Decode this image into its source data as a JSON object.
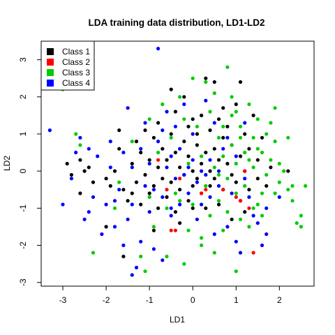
{
  "chart_data": {
    "type": "scatter",
    "title": "LDA training data distribution, LD1-LD2",
    "xlabel": "LD1",
    "ylabel": "LD2",
    "xlim": [
      -3.5,
      2.8
    ],
    "ylim": [
      -3.1,
      3.5
    ],
    "xticks": [
      -3,
      -2,
      -1,
      0,
      1,
      2
    ],
    "yticks": [
      -3,
      -2,
      -1,
      0,
      1,
      2,
      3
    ],
    "legend_position": "top-left",
    "series": [
      {
        "name": "Class 1",
        "color": "#000000",
        "points": [
          [
            -2.9,
            0.2
          ],
          [
            -2.8,
            -0.1
          ],
          [
            -2.6,
            0.3
          ],
          [
            -2.5,
            0.0
          ],
          [
            -2.4,
            0.1
          ],
          [
            -2.6,
            -0.6
          ],
          [
            -2.3,
            -0.3
          ],
          [
            -2.0,
            -0.2
          ],
          [
            -1.9,
            -0.4
          ],
          [
            -1.8,
            0.0
          ],
          [
            -1.6,
            -0.5
          ],
          [
            -1.7,
            0.6
          ],
          [
            -1.5,
            -0.8
          ],
          [
            -1.4,
            -0.6
          ],
          [
            -1.4,
            0.2
          ],
          [
            -1.3,
            0.8
          ],
          [
            -1.3,
            -0.3
          ],
          [
            -1.2,
            0.5
          ],
          [
            -1.2,
            -0.9
          ],
          [
            -1.1,
            1.1
          ],
          [
            -1.1,
            -0.1
          ],
          [
            -1.0,
            0.3
          ],
          [
            -1.0,
            -0.6
          ],
          [
            -0.9,
            0.9
          ],
          [
            -0.9,
            -0.4
          ],
          [
            -0.8,
            0.1
          ],
          [
            -0.8,
            1.3
          ],
          [
            -0.8,
            -1.0
          ],
          [
            -0.7,
            0.6
          ],
          [
            -0.7,
            -0.2
          ],
          [
            -0.6,
            0.3
          ],
          [
            -0.6,
            -0.7
          ],
          [
            -0.5,
            1.0
          ],
          [
            -0.5,
            -0.3
          ],
          [
            -0.4,
            0.5
          ],
          [
            -0.4,
            1.6
          ],
          [
            -0.4,
            -1.1
          ],
          [
            -0.3,
            0.1
          ],
          [
            -0.3,
            -0.5
          ],
          [
            -0.2,
            0.8
          ],
          [
            -0.2,
            -0.1
          ],
          [
            -0.1,
            1.2
          ],
          [
            -0.1,
            0.4
          ],
          [
            -0.1,
            -0.8
          ],
          [
            0.0,
            0.0
          ],
          [
            0.0,
            1.4
          ],
          [
            0.0,
            -0.4
          ],
          [
            0.1,
            0.7
          ],
          [
            0.1,
            -0.2
          ],
          [
            0.1,
            1.0
          ],
          [
            0.2,
            0.2
          ],
          [
            0.2,
            -0.6
          ],
          [
            0.2,
            1.5
          ],
          [
            0.3,
            0.5
          ],
          [
            0.3,
            -1.0
          ],
          [
            0.3,
            2.5
          ],
          [
            0.4,
            0.0
          ],
          [
            0.4,
            1.1
          ],
          [
            0.4,
            -0.4
          ],
          [
            0.5,
            0.6
          ],
          [
            0.5,
            -0.2
          ],
          [
            0.6,
            1.4
          ],
          [
            0.6,
            0.3
          ],
          [
            0.6,
            -0.9
          ],
          [
            0.7,
            0.9
          ],
          [
            0.7,
            -0.5
          ],
          [
            0.8,
            0.2
          ],
          [
            0.8,
            1.2
          ],
          [
            0.9,
            -0.1
          ],
          [
            0.9,
            0.7
          ],
          [
            1.0,
            1.8
          ],
          [
            1.0,
            -0.3
          ],
          [
            1.1,
            0.4
          ],
          [
            1.1,
            -0.8
          ],
          [
            1.1,
            2.4
          ],
          [
            1.2,
            1.0
          ],
          [
            1.2,
            0.0
          ],
          [
            1.3,
            -0.5
          ],
          [
            1.3,
            0.6
          ],
          [
            1.4,
            1.5
          ],
          [
            1.5,
            -0.2
          ],
          [
            1.5,
            0.3
          ],
          [
            1.6,
            0.9
          ],
          [
            1.7,
            -0.4
          ],
          [
            1.8,
            0.1
          ],
          [
            1.2,
            -1.1
          ],
          [
            0.9,
            -1.3
          ],
          [
            -1.6,
            -2.3
          ],
          [
            -2.0,
            -1.5
          ],
          [
            0.0,
            -1.0
          ],
          [
            -0.5,
            2.2
          ],
          [
            -0.2,
            2.0
          ],
          [
            0.5,
            2.4
          ],
          [
            -1.7,
            1.1
          ],
          [
            2.2,
            0.0
          ],
          [
            -0.9,
            -1.6
          ],
          [
            -0.3,
            -1.4
          ],
          [
            0.7,
            1.7
          ]
        ]
      },
      {
        "name": "Class 2",
        "color": "#ff0000",
        "points": [
          [
            -0.8,
            0.3
          ],
          [
            -0.6,
            -0.5
          ],
          [
            -0.5,
            -1.6
          ],
          [
            -0.4,
            -1.6
          ],
          [
            0.2,
            -0.6
          ],
          [
            0.3,
            -0.5
          ],
          [
            0.7,
            -0.5
          ],
          [
            1.0,
            -0.7
          ],
          [
            1.1,
            -0.8
          ],
          [
            1.2,
            0.0
          ],
          [
            1.3,
            -1.0
          ],
          [
            1.4,
            -2.2
          ],
          [
            -0.3,
            -0.2
          ]
        ]
      },
      {
        "name": "Class 3",
        "color": "#00cc00",
        "points": [
          [
            -3.0,
            2.2
          ],
          [
            -2.7,
            1.0
          ],
          [
            -2.6,
            0.7
          ],
          [
            -2.3,
            -2.2
          ],
          [
            -1.8,
            -1.0
          ],
          [
            -1.7,
            -0.3
          ],
          [
            -1.4,
            0.8
          ],
          [
            -1.2,
            -2.3
          ],
          [
            -1.1,
            -2.7
          ],
          [
            -1.0,
            -0.7
          ],
          [
            -1.0,
            1.4
          ],
          [
            -0.9,
            -1.5
          ],
          [
            -0.8,
            0.5
          ],
          [
            -0.7,
            1.8
          ],
          [
            -0.6,
            -1.0
          ],
          [
            -0.5,
            0.9
          ],
          [
            -0.4,
            -0.6
          ],
          [
            -0.3,
            2.0
          ],
          [
            -0.3,
            -0.8
          ],
          [
            -0.2,
            1.4
          ],
          [
            -0.1,
            0.2
          ],
          [
            -0.1,
            -1.6
          ],
          [
            0.0,
            2.5
          ],
          [
            0.0,
            -0.9
          ],
          [
            0.1,
            1.2
          ],
          [
            0.2,
            -1.8
          ],
          [
            0.2,
            0.4
          ],
          [
            0.3,
            2.4
          ],
          [
            0.3,
            -0.4
          ],
          [
            0.4,
            1.6
          ],
          [
            0.4,
            -1.2
          ],
          [
            0.5,
            0.1
          ],
          [
            0.5,
            2.1
          ],
          [
            0.6,
            -0.8
          ],
          [
            0.6,
            0.9
          ],
          [
            0.7,
            -1.6
          ],
          [
            0.7,
            1.2
          ],
          [
            0.7,
            0.4
          ],
          [
            0.8,
            2.8
          ],
          [
            0.8,
            -0.2
          ],
          [
            0.8,
            -1.1
          ],
          [
            0.9,
            0.7
          ],
          [
            0.9,
            1.5
          ],
          [
            1.0,
            -0.6
          ],
          [
            1.0,
            -2.7
          ],
          [
            1.0,
            0.2
          ],
          [
            1.1,
            1.2
          ],
          [
            1.1,
            -1.3
          ],
          [
            1.2,
            0.5
          ],
          [
            1.2,
            -0.4
          ],
          [
            1.3,
            1.8
          ],
          [
            1.3,
            -1.5
          ],
          [
            1.4,
            0.1
          ],
          [
            1.4,
            0.9
          ],
          [
            1.5,
            -0.9
          ],
          [
            1.5,
            1.4
          ],
          [
            1.6,
            0.5
          ],
          [
            1.6,
            -1.2
          ],
          [
            1.7,
            1.0
          ],
          [
            1.7,
            -0.1
          ],
          [
            1.8,
            0.3
          ],
          [
            1.9,
            -0.6
          ],
          [
            1.9,
            0.8
          ],
          [
            1.9,
            1.7
          ],
          [
            2.0,
            -0.3
          ],
          [
            2.0,
            0.2
          ],
          [
            2.1,
            0.0
          ],
          [
            2.2,
            -0.5
          ],
          [
            2.3,
            -0.4
          ],
          [
            2.4,
            -1.4
          ],
          [
            2.5,
            -1.2
          ],
          [
            2.5,
            -1.5
          ],
          [
            2.6,
            -0.4
          ],
          [
            2.3,
            -0.8
          ],
          [
            1.8,
            1.3
          ],
          [
            1.6,
            -0.6
          ],
          [
            1.4,
            -1.0
          ],
          [
            0.5,
            -2.2
          ],
          [
            0.2,
            -2.0
          ],
          [
            -0.2,
            -2.5
          ],
          [
            1.1,
            0.9
          ],
          [
            0.9,
            2.0
          ],
          [
            -0.6,
            -2.3
          ],
          [
            1.3,
            0.3
          ],
          [
            0.6,
            -0.1
          ],
          [
            1.5,
            0.6
          ],
          [
            2.2,
            0.9
          ],
          [
            1.0,
            1.6
          ]
        ]
      },
      {
        "name": "Class 4",
        "color": "#0000ff",
        "points": [
          [
            -3.3,
            1.1
          ],
          [
            -3.0,
            -0.9
          ],
          [
            -2.8,
            -0.2
          ],
          [
            -2.7,
            0.5
          ],
          [
            -2.6,
            0.9
          ],
          [
            -2.5,
            -1.3
          ],
          [
            -2.4,
            -1.1
          ],
          [
            -2.3,
            -0.7
          ],
          [
            -2.2,
            0.4
          ],
          [
            -2.1,
            -1.7
          ],
          [
            -2.0,
            -0.9
          ],
          [
            -1.9,
            0.1
          ],
          [
            -1.8,
            -1.5
          ],
          [
            -1.7,
            -0.5
          ],
          [
            -1.6,
            0.5
          ],
          [
            -1.6,
            -2.0
          ],
          [
            -1.5,
            -1.3
          ],
          [
            -1.5,
            1.7
          ],
          [
            -1.4,
            -0.9
          ],
          [
            -1.4,
            0.1
          ],
          [
            -1.3,
            -2.6
          ],
          [
            -1.2,
            -1.9
          ],
          [
            -1.2,
            0.6
          ],
          [
            -1.1,
            -0.4
          ],
          [
            -1.1,
            1.3
          ],
          [
            -1.0,
            -1.1
          ],
          [
            -1.0,
            0.2
          ],
          [
            -0.9,
            -2.1
          ],
          [
            -0.9,
            -0.5
          ],
          [
            -0.8,
            3.3
          ],
          [
            -0.8,
            0.8
          ],
          [
            -0.7,
            -0.7
          ],
          [
            -0.7,
            -2.4
          ],
          [
            -0.6,
            0.1
          ],
          [
            -0.6,
            1.6
          ],
          [
            -0.5,
            -1.2
          ],
          [
            -0.5,
            0.4
          ],
          [
            -0.4,
            -0.2
          ],
          [
            -0.4,
            1.2
          ],
          [
            -0.3,
            -0.9
          ],
          [
            -0.3,
            0.6
          ],
          [
            -0.2,
            -0.1
          ],
          [
            -0.2,
            1.8
          ],
          [
            -0.1,
            0.1
          ],
          [
            -0.1,
            -0.6
          ],
          [
            0.0,
            0.3
          ],
          [
            0.0,
            1.0
          ],
          [
            0.1,
            -0.3
          ],
          [
            0.1,
            -1.3
          ],
          [
            0.2,
            0.0
          ],
          [
            0.3,
            1.9
          ],
          [
            0.3,
            -0.1
          ],
          [
            0.4,
            0.3
          ],
          [
            0.4,
            -0.7
          ],
          [
            0.5,
            1.3
          ],
          [
            0.5,
            -1.7
          ],
          [
            0.6,
            0.0
          ],
          [
            0.6,
            -0.4
          ],
          [
            0.7,
            0.6
          ],
          [
            0.8,
            -1.5
          ],
          [
            0.9,
            -0.6
          ],
          [
            1.0,
            -1.9
          ],
          [
            1.0,
            0.4
          ],
          [
            1.1,
            -2.2
          ],
          [
            1.2,
            1.3
          ],
          [
            1.3,
            -0.7
          ],
          [
            1.4,
            -1.2
          ],
          [
            1.5,
            -1.4
          ],
          [
            1.6,
            -2.0
          ],
          [
            1.7,
            -1.0
          ],
          [
            2.0,
            -0.7
          ],
          [
            -1.4,
            -2.8
          ],
          [
            -1.9,
            0.8
          ],
          [
            -2.4,
            0.6
          ],
          [
            1.2,
            -0.2
          ],
          [
            0.2,
            -0.9
          ],
          [
            -0.5,
            -1.0
          ],
          [
            -1.8,
            -0.8
          ],
          [
            -0.7,
            1.1
          ],
          [
            0.8,
            0.9
          ],
          [
            1.7,
            -1.7
          ]
        ]
      }
    ]
  }
}
